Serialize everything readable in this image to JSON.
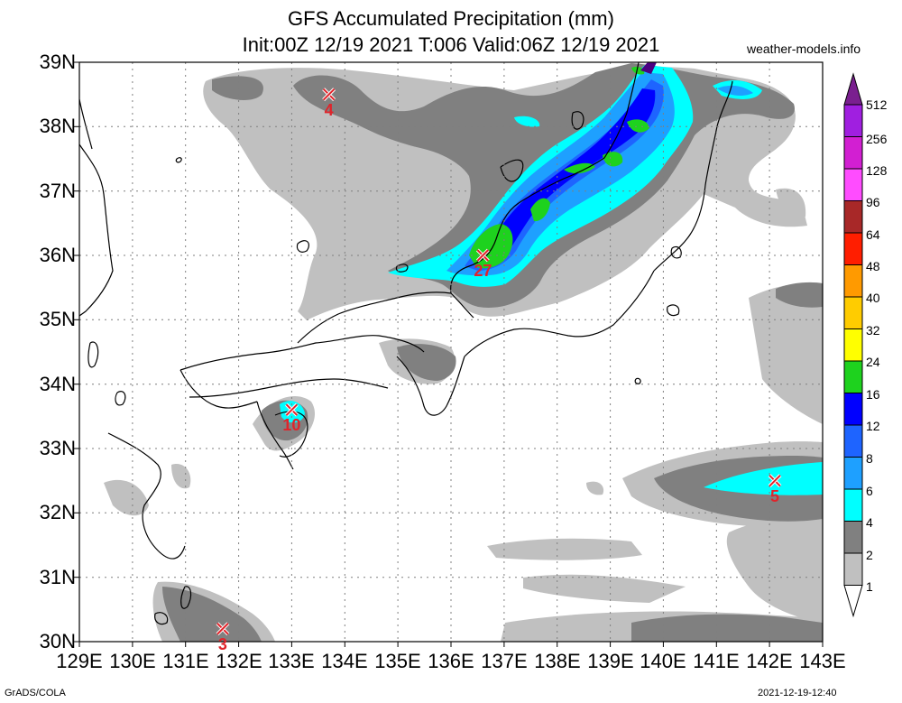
{
  "header": {
    "title": "GFS Accumulated Precipitation (mm)",
    "subtitle": "Init:00Z 12/19 2021 T:006 Valid:06Z 12/19 2021",
    "site": "weather-models.info"
  },
  "axes": {
    "lat_labels": [
      "39N",
      "38N",
      "37N",
      "36N",
      "35N",
      "34N",
      "33N",
      "32N",
      "31N",
      "30N"
    ],
    "lon_labels": [
      "129E",
      "130E",
      "131E",
      "132E",
      "133E",
      "134E",
      "135E",
      "136E",
      "137E",
      "138E",
      "139E",
      "140E",
      "141E",
      "142E",
      "143E"
    ],
    "lat_range": [
      30,
      39
    ],
    "lon_range": [
      129,
      143
    ]
  },
  "colorbar": {
    "levels": [
      "512",
      "256",
      "128",
      "96",
      "64",
      "48",
      "40",
      "32",
      "24",
      "16",
      "12",
      "8",
      "6",
      "4",
      "2",
      "1"
    ],
    "colors": [
      "#7a1f8f",
      "#a01fe0",
      "#d21fd2",
      "#ff4cff",
      "#a82828",
      "#ff1e00",
      "#ff9a00",
      "#ffcc00",
      "#ffff00",
      "#1ed21e",
      "#0000ff",
      "#1e64ff",
      "#1ea0ff",
      "#00ffff",
      "#808080",
      "#c0c0c0"
    ]
  },
  "markers": [
    {
      "lon": 133.7,
      "lat": 38.5,
      "value": "4"
    },
    {
      "lon": 136.6,
      "lat": 36.0,
      "value": "27"
    },
    {
      "lon": 133.0,
      "lat": 33.6,
      "value": "10"
    },
    {
      "lon": 142.1,
      "lat": 32.5,
      "value": "5"
    },
    {
      "lon": 131.7,
      "lat": 30.2,
      "value": "3"
    }
  ],
  "footer": {
    "left": "GrADS/COLA",
    "right": "2021-12-19-12:40"
  }
}
